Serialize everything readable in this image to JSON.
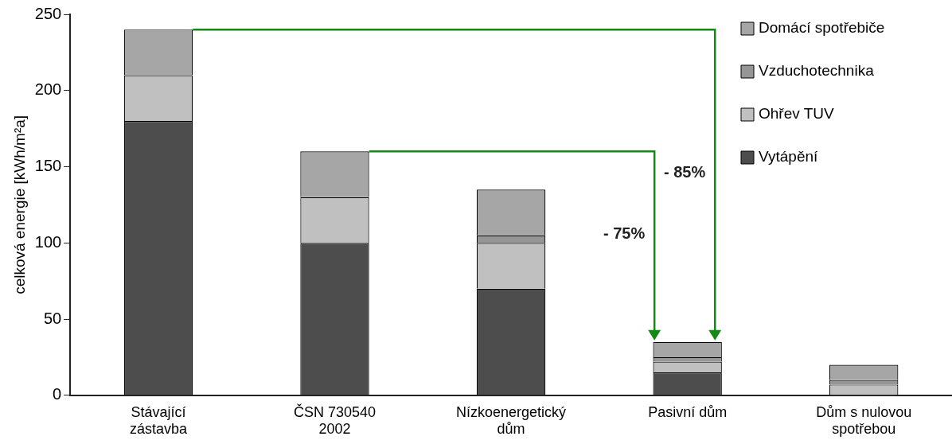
{
  "chart_data": {
    "type": "bar",
    "stacked": true,
    "ylabel": "celková energie [kWh/m²a]",
    "categories": [
      "Stávající zástavba",
      "ČSN 730540 2002",
      "Nízkoenergetický dům",
      "Pasivní dům",
      "Dům s nulovou spotřebou"
    ],
    "series": [
      {
        "name": "Vytápění",
        "color": "#4d4d4d",
        "values": [
          180,
          100,
          70,
          15,
          0
        ]
      },
      {
        "name": "Ohřev TUV",
        "color": "#c0c0c0",
        "values": [
          30,
          30,
          30,
          7,
          7
        ]
      },
      {
        "name": "Vzduchotechnika",
        "color": "#969696",
        "values": [
          0,
          0,
          5,
          3,
          3
        ]
      },
      {
        "name": "Domácí spotřebiče",
        "color": "#a6a6a6",
        "values": [
          30,
          30,
          30,
          10,
          10
        ]
      }
    ],
    "ylim": [
      0,
      250
    ],
    "yticks": [
      0,
      50,
      100,
      150,
      200,
      250
    ],
    "grid": false,
    "legend": "top right",
    "annotations": [
      "- 85%",
      "- 75%"
    ]
  }
}
